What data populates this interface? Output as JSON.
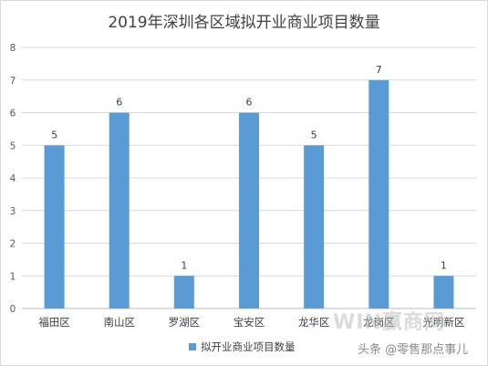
{
  "chart_data": {
    "type": "bar",
    "title": "2019年深圳各区域拟开业商业项目数量",
    "categories": [
      "福田区",
      "南山区",
      "罗湖区",
      "宝安区",
      "龙华区",
      "龙岗区",
      "光明新区"
    ],
    "series": [
      {
        "name": "拟开业商业项目数量",
        "values": [
          5,
          6,
          1,
          6,
          5,
          7,
          1
        ],
        "color": "#5b9bd5"
      }
    ],
    "ylim": [
      0,
      8
    ],
    "yticks": [
      "0",
      "1",
      "2",
      "3",
      "4",
      "5",
      "6",
      "7",
      "8"
    ],
    "grid": true,
    "legend_position": "bottom"
  },
  "watermark": {
    "logo": "WIN赢商网",
    "author": "头条 @零售那点事儿"
  }
}
